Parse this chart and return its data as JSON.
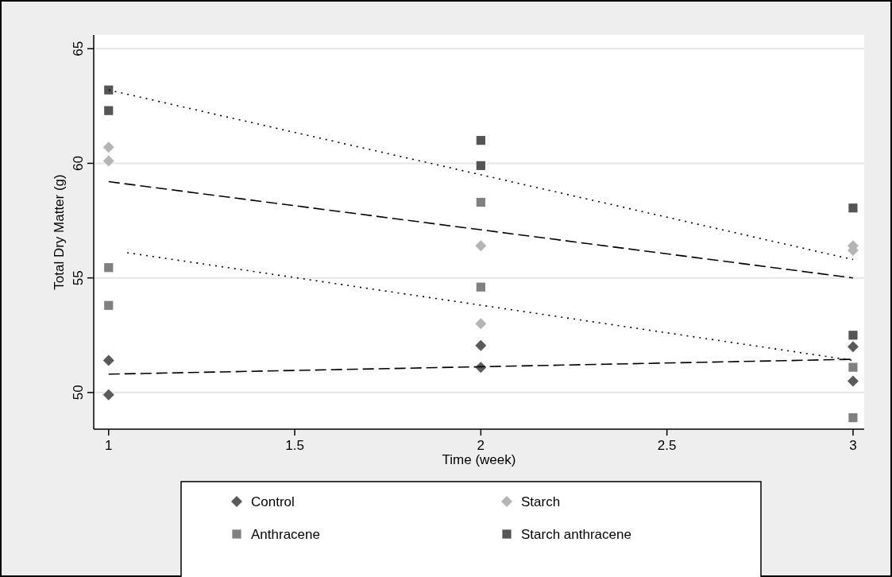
{
  "chart_data": {
    "type": "scatter",
    "xlabel": "Time (week)",
    "ylabel": "Total Dry Matter (g)",
    "xlim": [
      0.96,
      3.03
    ],
    "ylim": [
      48.4,
      65.6
    ],
    "xticks": [
      1,
      1.5,
      2,
      2.5,
      3
    ],
    "yticks": [
      50,
      55,
      60,
      65
    ],
    "grid": "y",
    "legend": "bottom",
    "series": [
      {
        "name": "Control",
        "color": "#5a5a5a",
        "marker": "diamond",
        "x": [
          1,
          1,
          2,
          2,
          3,
          3
        ],
        "values": [
          51.4,
          49.9,
          52.05,
          51.1,
          52.0,
          50.5
        ]
      },
      {
        "name": "Starch",
        "color": "#b4b4b4",
        "marker": "diamond",
        "x": [
          1,
          1,
          2,
          2,
          3,
          3
        ],
        "values": [
          60.7,
          60.1,
          56.4,
          53.0,
          56.4,
          56.2
        ]
      },
      {
        "name": "Anthracene",
        "color": "#808080",
        "marker": "square",
        "x": [
          1,
          1,
          2,
          2,
          3,
          3
        ],
        "values": [
          55.45,
          53.8,
          58.3,
          54.6,
          51.1,
          48.9
        ]
      },
      {
        "name": "Starch anthracene",
        "color": "#555555",
        "marker": "square",
        "x": [
          1,
          1,
          2,
          2,
          3,
          3
        ],
        "values": [
          63.2,
          62.3,
          61.0,
          59.9,
          58.05,
          52.5
        ]
      },
      {
        "type": "line",
        "color": "#000000",
        "line_style": "dashed",
        "x": [
          1,
          3
        ],
        "values": [
          50.8,
          51.45
        ]
      },
      {
        "type": "line",
        "color": "#000000",
        "line_style": "dashed",
        "x": [
          1,
          3
        ],
        "values": [
          59.2,
          55.0
        ]
      },
      {
        "type": "line",
        "color": "#000000",
        "line_style": "dotted",
        "x": [
          1.05,
          3
        ],
        "values": [
          56.1,
          51.4
        ]
      },
      {
        "type": "line",
        "color": "#000000",
        "line_style": "dotted",
        "x": [
          1,
          3
        ],
        "values": [
          63.2,
          55.8
        ]
      }
    ]
  }
}
